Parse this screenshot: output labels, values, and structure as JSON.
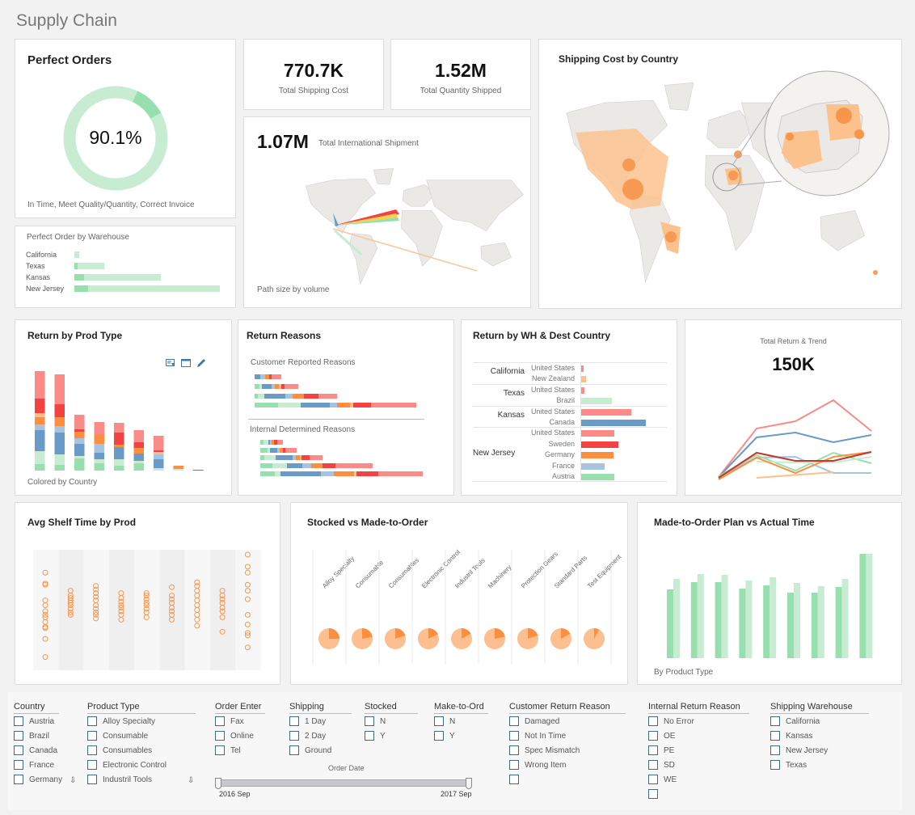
{
  "page_title": "Supply Chain",
  "colors": {
    "green": "#98dfaf",
    "ltgreen": "#c7ecd2",
    "blue": "#6a9bc8",
    "ltblue": "#a6c3e0",
    "orange": "#fd8e3f",
    "ltorange": "#fdbf8f",
    "red": "#f44242",
    "ltred": "#fc8b88",
    "accent_orange": "#f7954a"
  },
  "perfect_orders": {
    "title": "Perfect Orders",
    "value": "90.1%",
    "percent": 90.1,
    "caption": "In Time, Meet Quality/Quantity, Correct Invoice"
  },
  "perfect_by_warehouse": {
    "title": "Perfect Order by Warehouse",
    "rows": [
      {
        "label": "California",
        "perfect": 0,
        "total": 6
      },
      {
        "label": "Texas",
        "perfect": 4,
        "total": 37
      },
      {
        "label": "Kansas",
        "perfect": 12,
        "total": 107
      },
      {
        "label": "New Jersey",
        "perfect": 17,
        "total": 180
      }
    ]
  },
  "kpis": [
    {
      "value": "770.7K",
      "label": "Total Shipping Cost"
    },
    {
      "value": "1.52M",
      "label": "Total Quantity Shipped"
    }
  ],
  "international": {
    "value": "1.07M",
    "label": "Total  International Shipment",
    "caption": "Path size by volume"
  },
  "shipping_cost_map": {
    "title": "Shipping Cost by Country"
  },
  "return_by_prod": {
    "title": "Return by Prod Type",
    "caption": "Colored by Country",
    "icons": [
      "export-icon",
      "window-icon",
      "edit-icon"
    ],
    "segment_order": [
      "green",
      "ltgreen",
      "blue",
      "ltblue",
      "orange",
      "ltorange",
      "red",
      "ltred"
    ],
    "bars": [
      [
        8,
        16,
        26,
        7,
        9,
        5,
        18,
        34
      ],
      [
        7,
        13,
        27,
        8,
        11,
        0,
        16,
        37
      ],
      [
        15,
        3,
        15,
        7,
        8,
        0,
        3,
        18
      ],
      [
        9,
        5,
        8,
        11,
        12,
        0,
        0,
        15
      ],
      [
        6,
        8,
        15,
        0,
        3,
        0,
        15,
        12
      ],
      [
        9,
        3,
        9,
        0,
        7,
        0,
        7,
        15
      ],
      [
        0,
        3,
        11,
        6,
        0,
        3,
        2,
        18
      ],
      [
        0,
        2,
        0,
        0,
        4,
        0,
        0,
        0
      ],
      [
        0,
        0,
        0,
        0,
        0,
        0,
        1,
        0
      ]
    ]
  },
  "return_reasons": {
    "title": "Return Reasons",
    "customer": {
      "label": "Customer Reported Reasons",
      "rows": [
        [
          0,
          0,
          7,
          6,
          5,
          0,
          3,
          12
        ],
        [
          6,
          3,
          12,
          4,
          5,
          3,
          4,
          17
        ],
        [
          4,
          8,
          26,
          9,
          14,
          0,
          18,
          23
        ],
        [
          29,
          28,
          36,
          9,
          16,
          4,
          22,
          56
        ]
      ]
    },
    "internal": {
      "label": "Internal Determined Reasons",
      "rows": [
        [
          4,
          6,
          2,
          2,
          3,
          0,
          4,
          7
        ],
        [
          9,
          3,
          9,
          3,
          4,
          0,
          3,
          14
        ],
        [
          5,
          14,
          21,
          4,
          5,
          2,
          10,
          16
        ],
        [
          15,
          18,
          19,
          11,
          14,
          0,
          16,
          46
        ],
        [
          18,
          7,
          50,
          16,
          25,
          3,
          27,
          55
        ]
      ]
    }
  },
  "return_by_wh": {
    "title": "Return by WH & Dest Country",
    "groups": [
      {
        "wh": "California",
        "rows": [
          {
            "c": "United States",
            "v": 3,
            "col": "ltred"
          },
          {
            "c": "New Zealand",
            "v": 6,
            "col": "ltorange"
          }
        ]
      },
      {
        "wh": "Texas",
        "rows": [
          {
            "c": "United States",
            "v": 4,
            "col": "ltred"
          },
          {
            "c": "Brazil",
            "v": 38,
            "col": "ltgreen"
          }
        ]
      },
      {
        "wh": "Kansas",
        "rows": [
          {
            "c": "United States",
            "v": 62,
            "col": "ltred"
          },
          {
            "c": "Canada",
            "v": 80,
            "col": "blue"
          }
        ]
      },
      {
        "wh": "New Jersey",
        "rows": [
          {
            "c": "United States",
            "v": 41,
            "col": "ltred"
          },
          {
            "c": "Sweden",
            "v": 46,
            "col": "red"
          },
          {
            "c": "Germany",
            "v": 40,
            "col": "orange"
          },
          {
            "c": "France",
            "v": 29,
            "col": "ltblue"
          },
          {
            "c": "Austria",
            "v": 41,
            "col": "green"
          }
        ]
      }
    ]
  },
  "return_trend": {
    "title": "Total Return & Trend",
    "value": "150K",
    "series": [
      {
        "col": "ltred",
        "v": [
          12,
          72,
          81,
          107,
          69
        ]
      },
      {
        "col": "blue",
        "v": [
          12,
          61,
          67,
          55,
          64
        ]
      },
      {
        "col": "ltblue",
        "v": [
          12,
          36,
          37,
          17,
          17
        ]
      },
      {
        "col": "green",
        "v": [
          13,
          39,
          20,
          42,
          29
        ]
      },
      {
        "col": "ltgreen",
        "v": [
          null,
          31,
          30,
          30,
          37
        ]
      },
      {
        "col": "orange",
        "v": [
          9,
          36,
          17,
          37,
          43
        ]
      },
      {
        "col": "ltorange",
        "v": [
          null,
          11,
          null,
          18,
          null
        ]
      },
      {
        "col": "#c0392b",
        "v": [
          11,
          42,
          32,
          32,
          43
        ]
      }
    ]
  },
  "shelf_time": {
    "title": "Avg Shelf Time by Prod",
    "columns": [
      [
        81,
        72,
        71,
        58,
        54,
        49,
        46,
        44,
        40,
        36,
        35,
        26,
        11
      ],
      [
        66,
        62,
        60,
        58,
        56,
        54,
        51,
        48,
        46
      ],
      [
        70,
        67,
        64,
        61,
        58,
        54,
        51,
        48,
        46,
        43
      ],
      [
        64,
        60,
        57,
        54,
        52,
        49,
        46,
        42
      ],
      [
        64,
        62,
        59,
        56,
        54,
        51,
        48,
        44
      ],
      [
        69,
        62,
        59,
        56,
        52,
        49,
        46,
        42
      ],
      [
        73,
        70,
        66,
        62,
        58,
        54,
        50,
        46,
        42,
        37
      ],
      [
        66,
        62,
        59,
        56,
        52,
        49,
        44,
        32
      ],
      [
        96,
        86,
        81,
        71,
        66,
        59,
        46,
        38,
        31,
        29,
        19
      ]
    ]
  },
  "stocked_vs_mto": {
    "title": "Stocked vs Made-to-Order",
    "items": [
      {
        "label": "Alloy Specialty",
        "mto": 0.25
      },
      {
        "label": "Consumable",
        "mto": 0.22
      },
      {
        "label": "Consumables",
        "mto": 0.2
      },
      {
        "label": "Electronic Control",
        "mto": 0.18
      },
      {
        "label": "Industril Tools",
        "mto": 0.17
      },
      {
        "label": "Machinery",
        "mto": 0.22
      },
      {
        "label": "Protection Gears",
        "mto": 0.2
      },
      {
        "label": "Standard Parts",
        "mto": 0.17
      },
      {
        "label": "Test Equipment",
        "mto": 0.08
      }
    ]
  },
  "mto_plan_actual": {
    "title": "Made-to-Order Plan vs Actual Time",
    "caption": "By Product Type",
    "plan": [
      85,
      94,
      94,
      86,
      90,
      81,
      81,
      88,
      129
    ],
    "actual": [
      98,
      104,
      103,
      96,
      100,
      93,
      89,
      98,
      129
    ]
  },
  "filters": [
    {
      "title": "Country",
      "items": [
        "Austria",
        "Brazil",
        "Canada",
        "France",
        "Germany"
      ],
      "scroll": true
    },
    {
      "title": "Product Type",
      "items": [
        "Alloy Specialty",
        "Consumable",
        "Consumables",
        "Electronic Control",
        "Industril Tools"
      ],
      "scroll": true
    },
    {
      "title": "Order Enter",
      "items": [
        "Fax",
        "Online",
        "Tel"
      ]
    },
    {
      "title": "Shipping",
      "items": [
        "1 Day",
        "2 Day",
        "Ground"
      ]
    },
    {
      "title": "Stocked",
      "items": [
        "N",
        "Y"
      ]
    },
    {
      "title": "Make-to-Ord",
      "items": [
        "N",
        "Y"
      ]
    },
    {
      "title": "Customer Return Reason",
      "items": [
        "Damaged",
        "Not In Time",
        "Spec Mismatch",
        "Wrong Item",
        ""
      ]
    },
    {
      "title": "Internal Return Reason",
      "items": [
        "No Error",
        "OE",
        "PE",
        "SD",
        "WE",
        ""
      ]
    },
    {
      "title": "Shipping Warehouse",
      "items": [
        "California",
        "Kansas",
        "New Jersey",
        "Texas"
      ]
    }
  ],
  "order_date": {
    "label": "Order Date",
    "start": "2016 Sep",
    "end": "2017 Sep"
  }
}
